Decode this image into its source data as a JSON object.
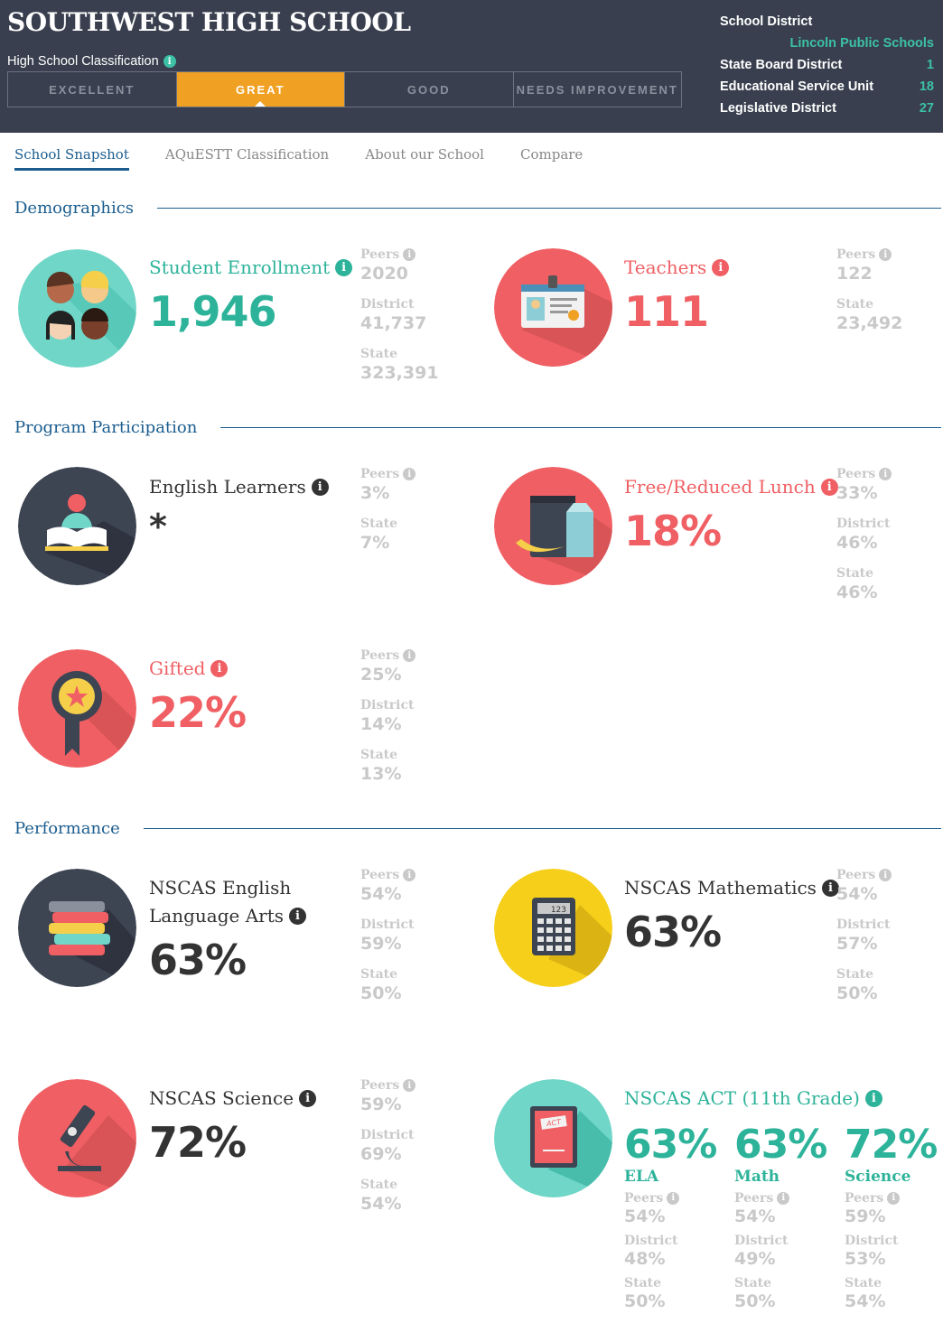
{
  "header": {
    "school_name": "SOUTHWEST HIGH SCHOOL",
    "classification_label": "High School Classification",
    "classifications": [
      "EXCELLENT",
      "GREAT",
      "GOOD",
      "NEEDS IMPROVEMENT"
    ],
    "active_classification": "GREAT",
    "district_info": [
      {
        "label": "School District",
        "value": ""
      },
      {
        "label": "",
        "value": "Lincoln Public Schools"
      },
      {
        "label": "State Board District",
        "value": "1"
      },
      {
        "label": "Educational Service Unit",
        "value": "18"
      },
      {
        "label": "Legislative District",
        "value": "27"
      }
    ],
    "accent_color": "#3cc1a4",
    "active_color": "#f0a022"
  },
  "tabs": [
    "School Snapshot",
    "AQuESTT Classification",
    "About our School",
    "Compare"
  ],
  "sections": {
    "demographics": "Demographics",
    "program": "Program Participation",
    "performance": "Performance"
  },
  "info_icon": "i",
  "cards": {
    "enrollment": {
      "icon": "students-icon",
      "title": "Student Enrollment",
      "value": "1,946",
      "comparisons": [
        {
          "label": "Peers",
          "value": "2020"
        },
        {
          "label": "District",
          "value": "41,737"
        },
        {
          "label": "State",
          "value": "323,391"
        }
      ]
    },
    "teachers": {
      "icon": "id-badge-icon",
      "title": "Teachers",
      "value": "111",
      "comparisons": [
        {
          "label": "Peers",
          "value": "122"
        },
        {
          "label": "State",
          "value": "23,492"
        }
      ]
    },
    "english_learners": {
      "icon": "reading-book-icon",
      "title": "English Learners",
      "value": "*",
      "comparisons": [
        {
          "label": "Peers",
          "value": "3%"
        },
        {
          "label": "State",
          "value": "7%"
        }
      ]
    },
    "lunch": {
      "icon": "lunch-bag-icon",
      "title": "Free/Reduced Lunch",
      "value": "18%",
      "comparisons": [
        {
          "label": "Peers",
          "value": "33%"
        },
        {
          "label": "District",
          "value": "46%"
        },
        {
          "label": "State",
          "value": "46%"
        }
      ]
    },
    "gifted": {
      "icon": "award-ribbon-icon",
      "title": "Gifted",
      "value": "22%",
      "comparisons": [
        {
          "label": "Peers",
          "value": "25%"
        },
        {
          "label": "District",
          "value": "14%"
        },
        {
          "label": "State",
          "value": "13%"
        }
      ]
    },
    "ela": {
      "icon": "book-stack-icon",
      "title_line1": "NSCAS English",
      "title_line2": "Language Arts",
      "value": "63%",
      "comparisons": [
        {
          "label": "Peers",
          "value": "54%"
        },
        {
          "label": "District",
          "value": "59%"
        },
        {
          "label": "State",
          "value": "50%"
        }
      ]
    },
    "math": {
      "icon": "calculator-icon",
      "title": "NSCAS Mathematics",
      "value": "63%",
      "calc_display": "123",
      "comparisons": [
        {
          "label": "Peers",
          "value": "54%"
        },
        {
          "label": "District",
          "value": "57%"
        },
        {
          "label": "State",
          "value": "50%"
        }
      ]
    },
    "science": {
      "icon": "microscope-icon",
      "title": "NSCAS Science",
      "value": "72%",
      "comparisons": [
        {
          "label": "Peers",
          "value": "59%"
        },
        {
          "label": "District",
          "value": "69%"
        },
        {
          "label": "State",
          "value": "54%"
        }
      ]
    },
    "act": {
      "icon": "act-test-icon",
      "title": "NSCAS ACT (11th Grade)",
      "badge_text": "ACT",
      "columns": [
        {
          "value": "63%",
          "subject": "ELA",
          "peers": "54%",
          "district": "48%",
          "state": "50%"
        },
        {
          "value": "63%",
          "subject": "Math",
          "peers": "54%",
          "district": "49%",
          "state": "50%"
        },
        {
          "value": "72%",
          "subject": "Science",
          "peers": "59%",
          "district": "53%",
          "state": "54%"
        }
      ],
      "labels": {
        "peers": "Peers",
        "district": "District",
        "state": "State"
      }
    }
  }
}
